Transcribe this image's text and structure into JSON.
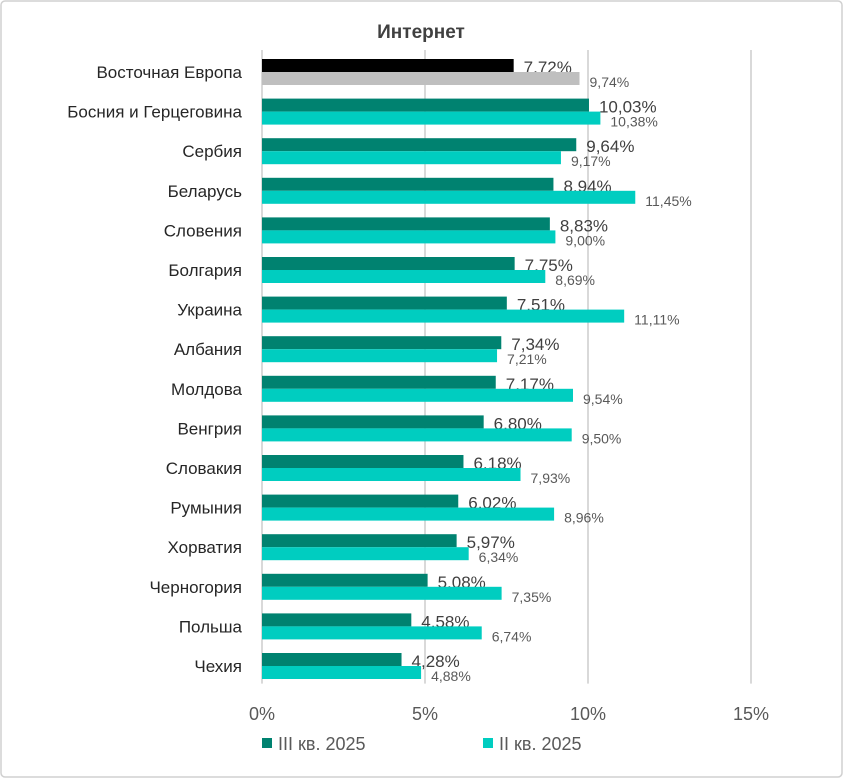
{
  "chart_data": {
    "type": "bar",
    "orientation": "horizontal",
    "title": "Интернет",
    "categories": [
      "Восточная Европа",
      "Босния и Герцеговина",
      "Сербия",
      "Беларусь",
      "Словения",
      "Болгария",
      "Украина",
      "Албания",
      "Молдова",
      "Венгрия",
      "Словакия",
      "Румыния",
      "Хорватия",
      "Черногория",
      "Польша",
      "Чехия"
    ],
    "series": [
      {
        "name": "III кв. 2025",
        "color": "#008270",
        "highlight_color": "#000000",
        "values": [
          7.72,
          10.03,
          9.64,
          8.94,
          8.83,
          7.75,
          7.51,
          7.34,
          7.17,
          6.8,
          6.18,
          6.02,
          5.97,
          5.08,
          4.58,
          4.28
        ],
        "labels": [
          "7,72%",
          "10,03%",
          "9,64%",
          "8,94%",
          "8,83%",
          "7,75%",
          "7,51%",
          "7,34%",
          "7,17%",
          "6,80%",
          "6,18%",
          "6,02%",
          "5,97%",
          "5,08%",
          "4,58%",
          "4,28%"
        ]
      },
      {
        "name": "II кв. 2025",
        "color": "#00CDC0",
        "highlight_color": "#BFBFBF",
        "values": [
          9.74,
          10.38,
          9.17,
          11.45,
          9.0,
          8.69,
          11.11,
          7.21,
          9.54,
          9.5,
          7.93,
          8.96,
          6.34,
          7.35,
          6.74,
          4.88
        ],
        "labels": [
          "9,74%",
          "10,38%",
          "9,17%",
          "11,45%",
          "9,00%",
          "8,69%",
          "11,11%",
          "7,21%",
          "9,54%",
          "9,50%",
          "7,93%",
          "8,96%",
          "6,34%",
          "7,35%",
          "6,74%",
          "4,88%"
        ]
      }
    ],
    "xlim": [
      0,
      15
    ],
    "xticks": [
      "0%",
      "5%",
      "10%",
      "15%"
    ],
    "xtick_values": [
      0,
      5,
      10,
      15
    ],
    "grid": true,
    "legend_position": "bottom"
  }
}
